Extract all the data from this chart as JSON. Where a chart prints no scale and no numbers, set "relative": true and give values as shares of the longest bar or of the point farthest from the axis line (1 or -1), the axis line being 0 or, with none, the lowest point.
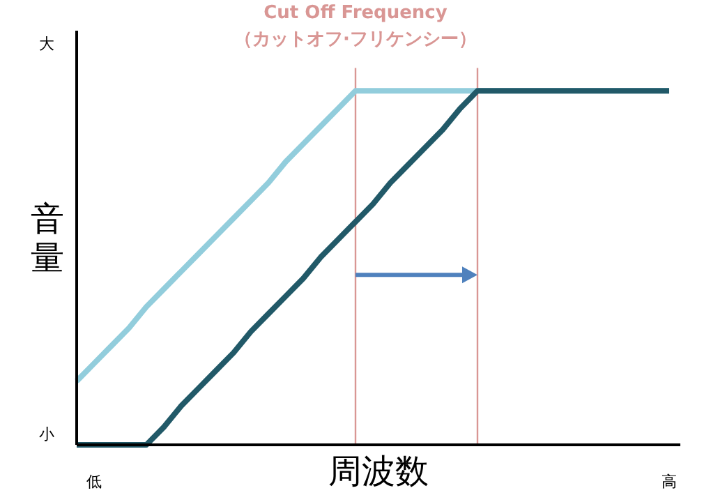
{
  "chart_data": {
    "type": "line",
    "relative": true,
    "title": "Cut Off Frequency",
    "subtitle": "（カットオフ·フリケンシー）",
    "xlabel": "周波数",
    "ylabel": "音量",
    "annotations": [
      "大",
      "小"
    ],
    "categories": [
      null,
      "低",
      null,
      null,
      null,
      null,
      null,
      null,
      null,
      null,
      null,
      null,
      null,
      null,
      null,
      null,
      null,
      null,
      null,
      null,
      null,
      null,
      null,
      null,
      null,
      null,
      null,
      null,
      null,
      null,
      null,
      null,
      null,
      null,
      "高"
    ],
    "series": [
      {
        "color": "#92cddc",
        "values": [
          0.18,
          0.23,
          0.28,
          0.33,
          0.39,
          0.44,
          0.49,
          0.54,
          0.59,
          0.64,
          0.69,
          0.74,
          0.8,
          0.85,
          0.9,
          0.95,
          1,
          1,
          1,
          1,
          1,
          1,
          1,
          1,
          1,
          1,
          1,
          1,
          1,
          1,
          1,
          1,
          1,
          1,
          1
        ]
      },
      {
        "color": "#215968",
        "values": [
          0,
          0,
          0,
          0,
          0,
          0.05,
          0.11,
          0.16,
          0.21,
          0.26,
          0.32,
          0.37,
          0.42,
          0.47,
          0.53,
          0.58,
          0.63,
          0.68,
          0.74,
          0.79,
          0.84,
          0.89,
          0.95,
          1,
          1,
          1,
          1,
          1,
          1,
          1,
          1,
          1,
          1,
          1,
          1
        ]
      }
    ],
    "marker": "none",
    "line_style": "solid"
  }
}
